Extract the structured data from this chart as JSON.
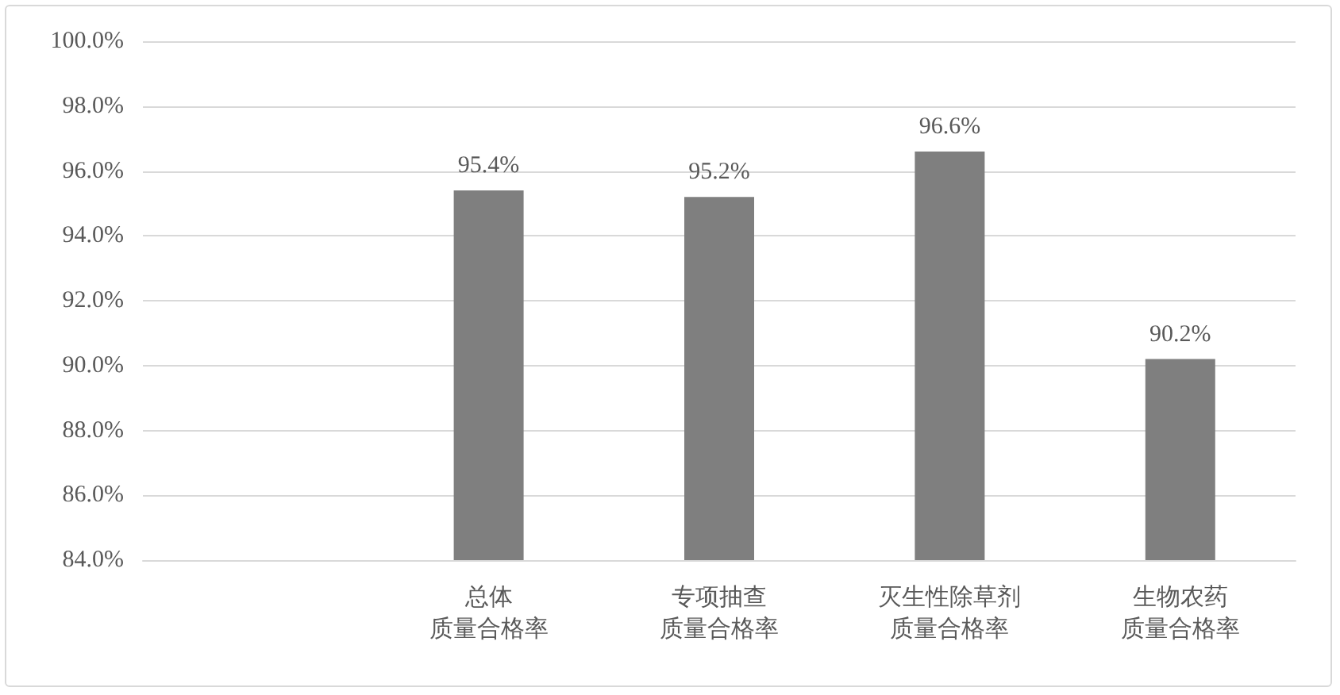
{
  "chart_data": {
    "type": "bar",
    "categories": [
      null,
      "总体质量合格率",
      "专项抽查质量合格率",
      "灭生性除草剂质量合格率",
      "生物农药质量合格率"
    ],
    "values": [
      null,
      95.4,
      95.2,
      96.6,
      90.2
    ],
    "value_labels": [
      null,
      "95.4%",
      "95.2%",
      "96.6%",
      "90.2%"
    ],
    "color": "#7f7f7f",
    "ylim": [
      84,
      100
    ],
    "yticks": [
      {
        "value": 84,
        "label": "84.0%"
      },
      {
        "value": 86,
        "label": "86.0%"
      },
      {
        "value": 88,
        "label": "88.0%"
      },
      {
        "value": 90,
        "label": "90.0%"
      },
      {
        "value": 92,
        "label": "92.0%"
      },
      {
        "value": 94,
        "label": "94.0%"
      },
      {
        "value": 96,
        "label": "96.0%"
      },
      {
        "value": 98,
        "label": "98.0%"
      },
      {
        "value": 100,
        "label": "100.0%"
      }
    ],
    "grid": "y"
  }
}
